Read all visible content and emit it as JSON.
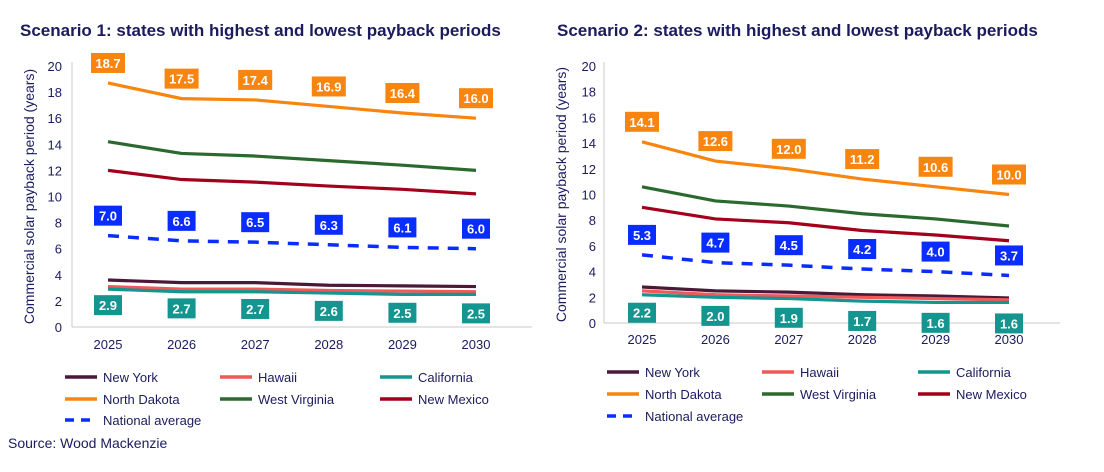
{
  "source": "Source: Wood Mackenzie",
  "colors": {
    "New York": "#4b1838",
    "Hawaii": "#f0585a",
    "California": "#14958f",
    "North Dakota": "#f7850f",
    "West Virginia": "#2b6a2e",
    "New Mexico": "#a3001c",
    "National average": "#0a2dff"
  },
  "chart_data": [
    {
      "type": "line",
      "title": "Scenario 1: states with highest and lowest payback periods",
      "ylabel": "Commercial solar payback period (years)",
      "ylim": [
        0,
        20
      ],
      "yticks": [
        0,
        2,
        4,
        6,
        8,
        10,
        12,
        14,
        16,
        18,
        20
      ],
      "categories": [
        "2025",
        "2026",
        "2027",
        "2028",
        "2029",
        "2030"
      ],
      "legend": "bottom",
      "series": [
        {
          "name": "New York",
          "values": [
            3.6,
            3.4,
            3.4,
            3.2,
            3.15,
            3.1
          ]
        },
        {
          "name": "Hawaii",
          "values": [
            3.1,
            2.9,
            2.9,
            2.8,
            2.75,
            2.7
          ]
        },
        {
          "name": "California",
          "values": [
            2.9,
            2.7,
            2.7,
            2.6,
            2.5,
            2.5
          ],
          "labels": [
            "2.9",
            "2.7",
            "2.7",
            "2.6",
            "2.5",
            "2.5"
          ]
        },
        {
          "name": "North Dakota",
          "values": [
            18.7,
            17.5,
            17.4,
            16.9,
            16.4,
            16.0
          ],
          "labels": [
            "18.7",
            "17.5",
            "17.4",
            "16.9",
            "16.4",
            "16.0"
          ]
        },
        {
          "name": "West Virginia",
          "values": [
            14.2,
            13.3,
            13.1,
            12.75,
            12.4,
            12.0
          ]
        },
        {
          "name": "New Mexico",
          "values": [
            12.0,
            11.3,
            11.1,
            10.8,
            10.55,
            10.2
          ]
        },
        {
          "name": "National average",
          "values": [
            7.0,
            6.6,
            6.5,
            6.3,
            6.1,
            6.0
          ],
          "labels": [
            "7.0",
            "6.6",
            "6.5",
            "6.3",
            "6.1",
            "6.0"
          ],
          "dashed": true
        }
      ]
    },
    {
      "type": "line",
      "title": "Scenario 2: states with highest and lowest payback periods",
      "ylabel": "Commercial solar payback period (years)",
      "ylim": [
        0,
        20
      ],
      "yticks": [
        0,
        2,
        4,
        6,
        8,
        10,
        12,
        14,
        16,
        18,
        20
      ],
      "categories": [
        "2025",
        "2026",
        "2027",
        "2028",
        "2029",
        "2030"
      ],
      "legend": "bottom",
      "series": [
        {
          "name": "New York",
          "values": [
            2.8,
            2.5,
            2.4,
            2.2,
            2.1,
            1.95
          ]
        },
        {
          "name": "Hawaii",
          "values": [
            2.5,
            2.2,
            2.1,
            2.0,
            1.9,
            1.8
          ]
        },
        {
          "name": "California",
          "values": [
            2.2,
            2.0,
            1.9,
            1.7,
            1.6,
            1.6
          ],
          "labels": [
            "2.2",
            "2.0",
            "1.9",
            "1.7",
            "1.6",
            "1.6"
          ]
        },
        {
          "name": "North Dakota",
          "values": [
            14.1,
            12.6,
            12.0,
            11.2,
            10.6,
            10.0
          ],
          "labels": [
            "14.1",
            "12.6",
            "12.0",
            "11.2",
            "10.6",
            "10.0"
          ]
        },
        {
          "name": "West Virginia",
          "values": [
            10.6,
            9.5,
            9.1,
            8.5,
            8.1,
            7.55
          ]
        },
        {
          "name": "New Mexico",
          "values": [
            9.0,
            8.1,
            7.8,
            7.2,
            6.85,
            6.4
          ]
        },
        {
          "name": "National average",
          "values": [
            5.3,
            4.7,
            4.5,
            4.2,
            4.0,
            3.7
          ],
          "labels": [
            "5.3",
            "4.7",
            "4.5",
            "4.2",
            "4.0",
            "3.7"
          ],
          "dashed": true
        }
      ]
    }
  ]
}
